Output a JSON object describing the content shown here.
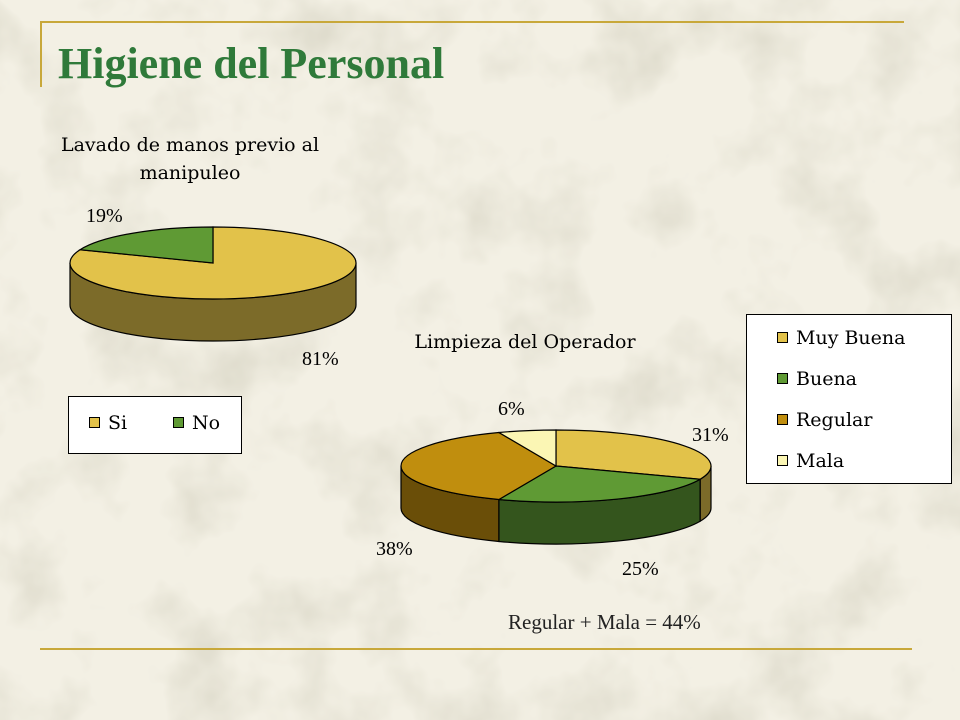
{
  "slide": {
    "title": "Higiene del Personal",
    "note": "Regular + Mala = 44%"
  },
  "colors": {
    "title": "#2f7a3a",
    "accent_line": "#c8a83a"
  },
  "chart_data": [
    {
      "type": "pie",
      "title": "Lavado de manos previo al manipuleo",
      "title_lines": [
        "Lavado de manos previo al",
        "manipuleo"
      ],
      "categories": [
        "Si",
        "No"
      ],
      "values": [
        81,
        19
      ],
      "labels": [
        "81%",
        "19%"
      ],
      "colors": [
        "#e2c24a",
        "#5f9a34"
      ],
      "legend": "bottom-left"
    },
    {
      "type": "pie",
      "title": "Limpieza del Operador",
      "categories": [
        "Muy Buena",
        "Buena",
        "Regular",
        "Mala"
      ],
      "values": [
        31,
        25,
        38,
        6
      ],
      "labels": [
        "31%",
        "25%",
        "38%",
        "6%"
      ],
      "colors": [
        "#e2c24a",
        "#5f9a34",
        "#c08e0e",
        "#fbf6b4"
      ],
      "legend": "right"
    }
  ]
}
